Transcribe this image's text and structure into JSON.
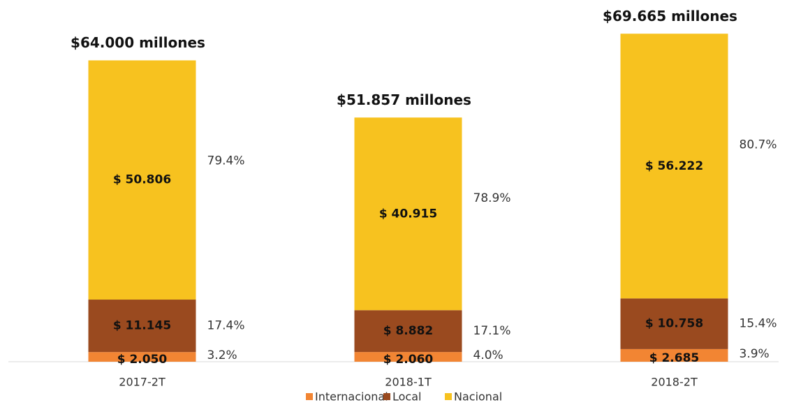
{
  "chart_data": {
    "type": "stacked-bar",
    "categories": [
      "2017-2T",
      "2018-1T",
      "2018-2T"
    ],
    "total_labels": [
      "$64.000 millones",
      "$51.857 millones",
      "$69.665 millones"
    ],
    "series": [
      {
        "name": "Internacional",
        "color": "#f28533",
        "values": [
          2050,
          2060,
          2685
        ],
        "value_labels": [
          "$ 2.050",
          "$ 2.060",
          "$ 2.685"
        ],
        "share_labels": [
          "3.2%",
          "4.0%",
          "3.9%"
        ]
      },
      {
        "name": "Local",
        "color": "#9a4a1f",
        "values": [
          11145,
          8882,
          10758
        ],
        "value_labels": [
          "$ 11.145",
          "$ 8.882",
          "$ 10.758"
        ],
        "share_labels": [
          "17.4%",
          "17.1%",
          "15.4%"
        ]
      },
      {
        "name": "Nacional",
        "color": "#f7c21f",
        "values": [
          50806,
          40915,
          56222
        ],
        "value_labels": [
          "$ 50.806",
          "$ 40.915",
          "$ 56.222"
        ],
        "share_labels": [
          "79.4%",
          "78.9%",
          "80.7%"
        ]
      }
    ],
    "ylim": [
      0,
      70000
    ],
    "legend": "bottom"
  }
}
